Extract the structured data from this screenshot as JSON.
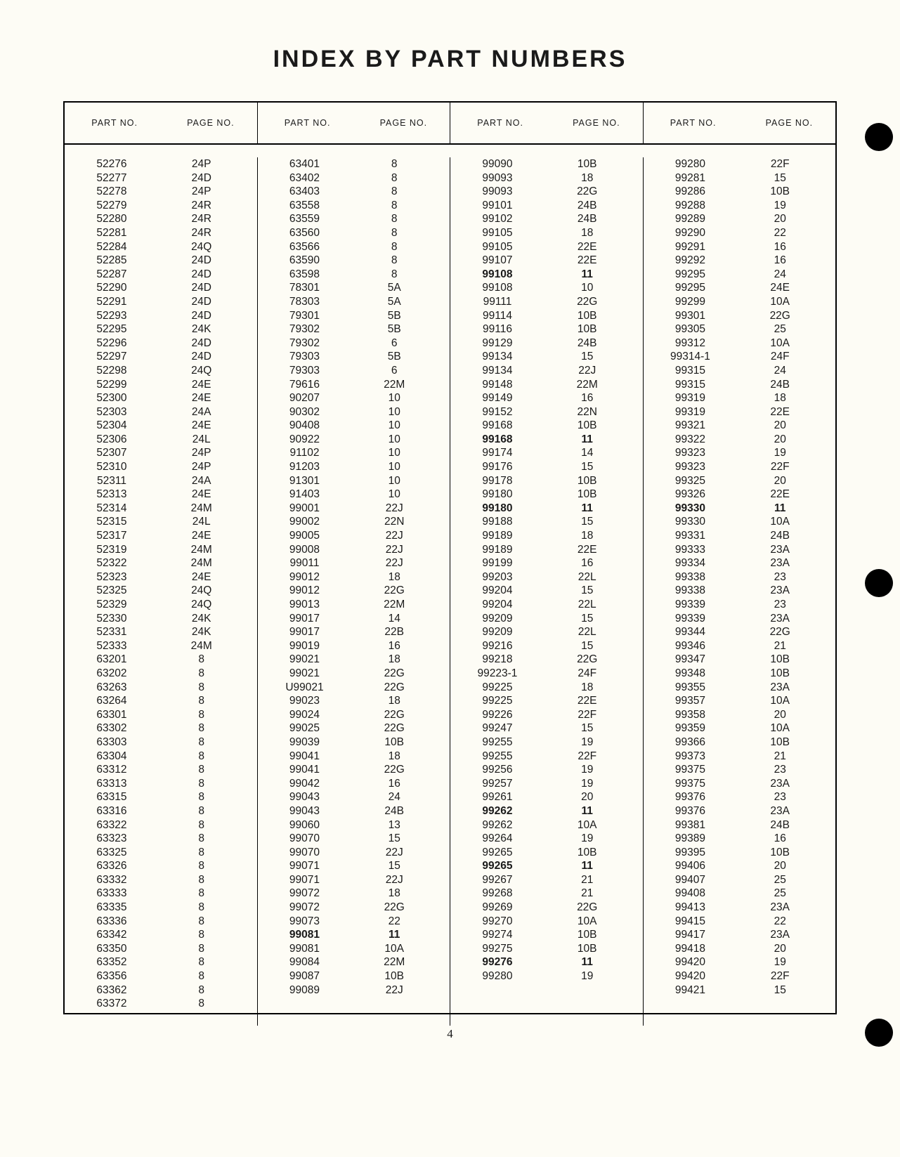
{
  "title": "INDEX BY PART NUMBERS",
  "page_number": "4",
  "headers": {
    "part": "PART NO.",
    "page": "PAGE NO."
  },
  "columns": [
    [
      {
        "pn": "52276",
        "pg": "24P"
      },
      {
        "pn": "52277",
        "pg": "24D"
      },
      {
        "pn": "52278",
        "pg": "24P"
      },
      {
        "pn": "52279",
        "pg": "24R"
      },
      {
        "pn": "52280",
        "pg": "24R"
      },
      {
        "pn": "52281",
        "pg": "24R"
      },
      {
        "pn": "52284",
        "pg": "24Q"
      },
      {
        "pn": "52285",
        "pg": "24D"
      },
      {
        "pn": "52287",
        "pg": "24D"
      },
      {
        "pn": "52290",
        "pg": "24D"
      },
      {
        "pn": "52291",
        "pg": "24D"
      },
      {
        "pn": "52293",
        "pg": "24D"
      },
      {
        "pn": "52295",
        "pg": "24K"
      },
      {
        "pn": "52296",
        "pg": "24D"
      },
      {
        "pn": "52297",
        "pg": "24D"
      },
      {
        "pn": "52298",
        "pg": "24Q"
      },
      {
        "pn": "52299",
        "pg": "24E"
      },
      {
        "pn": "52300",
        "pg": "24E"
      },
      {
        "pn": "52303",
        "pg": "24A"
      },
      {
        "pn": "52304",
        "pg": "24E"
      },
      {
        "pn": "52306",
        "pg": "24L"
      },
      {
        "pn": "52307",
        "pg": "24P"
      },
      {
        "pn": "52310",
        "pg": "24P"
      },
      {
        "pn": "52311",
        "pg": "24A"
      },
      {
        "pn": "52313",
        "pg": "24E"
      },
      {
        "pn": "52314",
        "pg": "24M"
      },
      {
        "pn": "52315",
        "pg": "24L"
      },
      {
        "pn": "52317",
        "pg": "24E"
      },
      {
        "pn": "52319",
        "pg": "24M"
      },
      {
        "pn": "52322",
        "pg": "24M"
      },
      {
        "pn": "52323",
        "pg": "24E"
      },
      {
        "pn": "52325",
        "pg": "24Q"
      },
      {
        "pn": "52329",
        "pg": "24Q"
      },
      {
        "pn": "52330",
        "pg": "24K"
      },
      {
        "pn": "52331",
        "pg": "24K"
      },
      {
        "pn": "52333",
        "pg": "24M"
      },
      {
        "pn": "63201",
        "pg": "8"
      },
      {
        "pn": "63202",
        "pg": "8"
      },
      {
        "pn": "63263",
        "pg": "8"
      },
      {
        "pn": "63264",
        "pg": "8"
      },
      {
        "pn": "63301",
        "pg": "8"
      },
      {
        "pn": "63302",
        "pg": "8"
      },
      {
        "pn": "63303",
        "pg": "8"
      },
      {
        "pn": "63304",
        "pg": "8"
      },
      {
        "pn": "63312",
        "pg": "8"
      },
      {
        "pn": "63313",
        "pg": "8"
      },
      {
        "pn": "63315",
        "pg": "8"
      },
      {
        "pn": "63316",
        "pg": "8"
      },
      {
        "pn": "63322",
        "pg": "8"
      },
      {
        "pn": "63323",
        "pg": "8"
      },
      {
        "pn": "63325",
        "pg": "8"
      },
      {
        "pn": "63326",
        "pg": "8"
      },
      {
        "pn": "63332",
        "pg": "8"
      },
      {
        "pn": "63333",
        "pg": "8"
      },
      {
        "pn": "63335",
        "pg": "8"
      },
      {
        "pn": "63336",
        "pg": "8"
      },
      {
        "pn": "63342",
        "pg": "8"
      },
      {
        "pn": "63350",
        "pg": "8"
      },
      {
        "pn": "63352",
        "pg": "8"
      },
      {
        "pn": "63356",
        "pg": "8"
      },
      {
        "pn": "63362",
        "pg": "8"
      },
      {
        "pn": "63372",
        "pg": "8"
      }
    ],
    [
      {
        "pn": "63401",
        "pg": "8"
      },
      {
        "pn": "63402",
        "pg": "8"
      },
      {
        "pn": "63403",
        "pg": "8"
      },
      {
        "pn": "63558",
        "pg": "8"
      },
      {
        "pn": "63559",
        "pg": "8"
      },
      {
        "pn": "63560",
        "pg": "8"
      },
      {
        "pn": "63566",
        "pg": "8"
      },
      {
        "pn": "63590",
        "pg": "8"
      },
      {
        "pn": "63598",
        "pg": "8"
      },
      {
        "pn": "78301",
        "pg": "5A"
      },
      {
        "pn": "78303",
        "pg": "5A"
      },
      {
        "pn": "79301",
        "pg": "5B"
      },
      {
        "pn": "79302",
        "pg": "5B"
      },
      {
        "pn": "79302",
        "pg": "6"
      },
      {
        "pn": "79303",
        "pg": "5B"
      },
      {
        "pn": "79303",
        "pg": "6"
      },
      {
        "pn": "79616",
        "pg": "22M"
      },
      {
        "pn": "90207",
        "pg": "10"
      },
      {
        "pn": "90302",
        "pg": "10"
      },
      {
        "pn": "90408",
        "pg": "10"
      },
      {
        "pn": "90922",
        "pg": "10"
      },
      {
        "pn": "91102",
        "pg": "10"
      },
      {
        "pn": "91203",
        "pg": "10"
      },
      {
        "pn": "91301",
        "pg": "10"
      },
      {
        "pn": "91403",
        "pg": "10"
      },
      {
        "pn": "99001",
        "pg": "22J"
      },
      {
        "pn": "99002",
        "pg": "22N"
      },
      {
        "pn": "99005",
        "pg": "22J"
      },
      {
        "pn": "99008",
        "pg": "22J"
      },
      {
        "pn": "99011",
        "pg": "22J"
      },
      {
        "pn": "99012",
        "pg": "18"
      },
      {
        "pn": "99012",
        "pg": "22G"
      },
      {
        "pn": "99013",
        "pg": "22M"
      },
      {
        "pn": "99017",
        "pg": "14"
      },
      {
        "pn": "99017",
        "pg": "22B"
      },
      {
        "pn": "99019",
        "pg": "16"
      },
      {
        "pn": "99021",
        "pg": "18"
      },
      {
        "pn": "99021",
        "pg": "22G"
      },
      {
        "pn": "U99021",
        "pg": "22G"
      },
      {
        "pn": "99023",
        "pg": "18"
      },
      {
        "pn": "99024",
        "pg": "22G"
      },
      {
        "pn": "99025",
        "pg": "22G"
      },
      {
        "pn": "99039",
        "pg": "10B"
      },
      {
        "pn": "99041",
        "pg": "18"
      },
      {
        "pn": "99041",
        "pg": "22G"
      },
      {
        "pn": "99042",
        "pg": "16"
      },
      {
        "pn": "99043",
        "pg": "24"
      },
      {
        "pn": "99043",
        "pg": "24B"
      },
      {
        "pn": "99060",
        "pg": "13"
      },
      {
        "pn": "99070",
        "pg": "15"
      },
      {
        "pn": "99070",
        "pg": "22J"
      },
      {
        "pn": "99071",
        "pg": "15"
      },
      {
        "pn": "99071",
        "pg": "22J"
      },
      {
        "pn": "99072",
        "pg": "18"
      },
      {
        "pn": "99072",
        "pg": "22G"
      },
      {
        "pn": "99073",
        "pg": "22"
      },
      {
        "pn": "99081",
        "pg": "11",
        "bold": true
      },
      {
        "pn": "99081",
        "pg": "10A"
      },
      {
        "pn": "99084",
        "pg": "22M"
      },
      {
        "pn": "99087",
        "pg": "10B"
      },
      {
        "pn": "99089",
        "pg": "22J"
      }
    ],
    [
      {
        "pn": "99090",
        "pg": "10B"
      },
      {
        "pn": "99093",
        "pg": "18"
      },
      {
        "pn": "99093",
        "pg": "22G"
      },
      {
        "pn": "99101",
        "pg": "24B"
      },
      {
        "pn": "99102",
        "pg": "24B"
      },
      {
        "pn": "99105",
        "pg": "18"
      },
      {
        "pn": "99105",
        "pg": "22E"
      },
      {
        "pn": "99107",
        "pg": "22E"
      },
      {
        "pn": "99108",
        "pg": "11",
        "bold": true
      },
      {
        "pn": "99108",
        "pg": "10"
      },
      {
        "pn": "99111",
        "pg": "22G"
      },
      {
        "pn": "99114",
        "pg": "10B"
      },
      {
        "pn": "99116",
        "pg": "10B"
      },
      {
        "pn": "99129",
        "pg": "24B"
      },
      {
        "pn": "99134",
        "pg": "15"
      },
      {
        "pn": "99134",
        "pg": "22J"
      },
      {
        "pn": "99148",
        "pg": "22M"
      },
      {
        "pn": "99149",
        "pg": "16"
      },
      {
        "pn": "99152",
        "pg": "22N"
      },
      {
        "pn": "99168",
        "pg": "10B"
      },
      {
        "pn": "99168",
        "pg": "11",
        "bold": true
      },
      {
        "pn": "99174",
        "pg": "14"
      },
      {
        "pn": "99176",
        "pg": "15"
      },
      {
        "pn": "99178",
        "pg": "10B"
      },
      {
        "pn": "99180",
        "pg": "10B"
      },
      {
        "pn": "99180",
        "pg": "11",
        "bold": true
      },
      {
        "pn": "99188",
        "pg": "15"
      },
      {
        "pn": "99189",
        "pg": "18"
      },
      {
        "pn": "99189",
        "pg": "22E"
      },
      {
        "pn": "99199",
        "pg": "16"
      },
      {
        "pn": "99203",
        "pg": "22L"
      },
      {
        "pn": "99204",
        "pg": "15"
      },
      {
        "pn": "99204",
        "pg": "22L"
      },
      {
        "pn": "99209",
        "pg": "15"
      },
      {
        "pn": "99209",
        "pg": "22L"
      },
      {
        "pn": "99216",
        "pg": "15"
      },
      {
        "pn": "99218",
        "pg": "22G"
      },
      {
        "pn": "99223-1",
        "pg": "24F"
      },
      {
        "pn": "99225",
        "pg": "18"
      },
      {
        "pn": "99225",
        "pg": "22E"
      },
      {
        "pn": "99226",
        "pg": "22F"
      },
      {
        "pn": "99247",
        "pg": "15"
      },
      {
        "pn": "99255",
        "pg": "19"
      },
      {
        "pn": "99255",
        "pg": "22F"
      },
      {
        "pn": "99256",
        "pg": "19"
      },
      {
        "pn": "99257",
        "pg": "19"
      },
      {
        "pn": "99261",
        "pg": "20"
      },
      {
        "pn": "99262",
        "pg": "11",
        "bold": true
      },
      {
        "pn": "99262",
        "pg": "10A"
      },
      {
        "pn": "99264",
        "pg": "19"
      },
      {
        "pn": "99265",
        "pg": "10B"
      },
      {
        "pn": "99265",
        "pg": "11",
        "bold": true
      },
      {
        "pn": "99267",
        "pg": "21"
      },
      {
        "pn": "99268",
        "pg": "21"
      },
      {
        "pn": "99269",
        "pg": "22G"
      },
      {
        "pn": "99270",
        "pg": "10A"
      },
      {
        "pn": "99274",
        "pg": "10B"
      },
      {
        "pn": "99275",
        "pg": "10B"
      },
      {
        "pn": "99276",
        "pg": "11",
        "bold": true
      },
      {
        "pn": "99280",
        "pg": "19"
      }
    ],
    [
      {
        "pn": "99280",
        "pg": "22F"
      },
      {
        "pn": "99281",
        "pg": "15"
      },
      {
        "pn": "99286",
        "pg": "10B"
      },
      {
        "pn": "99288",
        "pg": "19"
      },
      {
        "pn": "99289",
        "pg": "20"
      },
      {
        "pn": "99290",
        "pg": "22"
      },
      {
        "pn": "99291",
        "pg": "16"
      },
      {
        "pn": "99292",
        "pg": "16"
      },
      {
        "pn": "99295",
        "pg": "24"
      },
      {
        "pn": "99295",
        "pg": "24E"
      },
      {
        "pn": "99299",
        "pg": "10A"
      },
      {
        "pn": "99301",
        "pg": "22G"
      },
      {
        "pn": "99305",
        "pg": "25"
      },
      {
        "pn": "99312",
        "pg": "10A"
      },
      {
        "pn": "99314-1",
        "pg": "24F"
      },
      {
        "pn": "99315",
        "pg": "24"
      },
      {
        "pn": "99315",
        "pg": "24B"
      },
      {
        "pn": "99319",
        "pg": "18"
      },
      {
        "pn": "99319",
        "pg": "22E"
      },
      {
        "pn": "99321",
        "pg": "20"
      },
      {
        "pn": "99322",
        "pg": "20"
      },
      {
        "pn": "99323",
        "pg": "19"
      },
      {
        "pn": "99323",
        "pg": "22F"
      },
      {
        "pn": "99325",
        "pg": "20"
      },
      {
        "pn": "99326",
        "pg": "22E"
      },
      {
        "pn": "99330",
        "pg": "11",
        "bold": true
      },
      {
        "pn": "99330",
        "pg": "10A"
      },
      {
        "pn": "99331",
        "pg": "24B"
      },
      {
        "pn": "99333",
        "pg": "23A"
      },
      {
        "pn": "99334",
        "pg": "23A"
      },
      {
        "pn": "99338",
        "pg": "23"
      },
      {
        "pn": "99338",
        "pg": "23A"
      },
      {
        "pn": "99339",
        "pg": "23"
      },
      {
        "pn": "99339",
        "pg": "23A"
      },
      {
        "pn": "99344",
        "pg": "22G"
      },
      {
        "pn": "99346",
        "pg": "21"
      },
      {
        "pn": "99347",
        "pg": "10B"
      },
      {
        "pn": "99348",
        "pg": "10B"
      },
      {
        "pn": "99355",
        "pg": "23A"
      },
      {
        "pn": "99357",
        "pg": "10A"
      },
      {
        "pn": "99358",
        "pg": "20"
      },
      {
        "pn": "99359",
        "pg": "10A"
      },
      {
        "pn": "99366",
        "pg": "10B"
      },
      {
        "pn": "99373",
        "pg": "21"
      },
      {
        "pn": "99375",
        "pg": "23"
      },
      {
        "pn": "99375",
        "pg": "23A"
      },
      {
        "pn": "99376",
        "pg": "23"
      },
      {
        "pn": "99376",
        "pg": "23A"
      },
      {
        "pn": "99381",
        "pg": "24B"
      },
      {
        "pn": "99389",
        "pg": "16"
      },
      {
        "pn": "99395",
        "pg": "10B"
      },
      {
        "pn": "99406",
        "pg": "20"
      },
      {
        "pn": "99407",
        "pg": "25"
      },
      {
        "pn": "99408",
        "pg": "25"
      },
      {
        "pn": "99413",
        "pg": "23A"
      },
      {
        "pn": "99415",
        "pg": "22"
      },
      {
        "pn": "99417",
        "pg": "23A"
      },
      {
        "pn": "99418",
        "pg": "20"
      },
      {
        "pn": "99420",
        "pg": "19"
      },
      {
        "pn": "99420",
        "pg": "22F"
      },
      {
        "pn": "99421",
        "pg": "15"
      }
    ]
  ]
}
